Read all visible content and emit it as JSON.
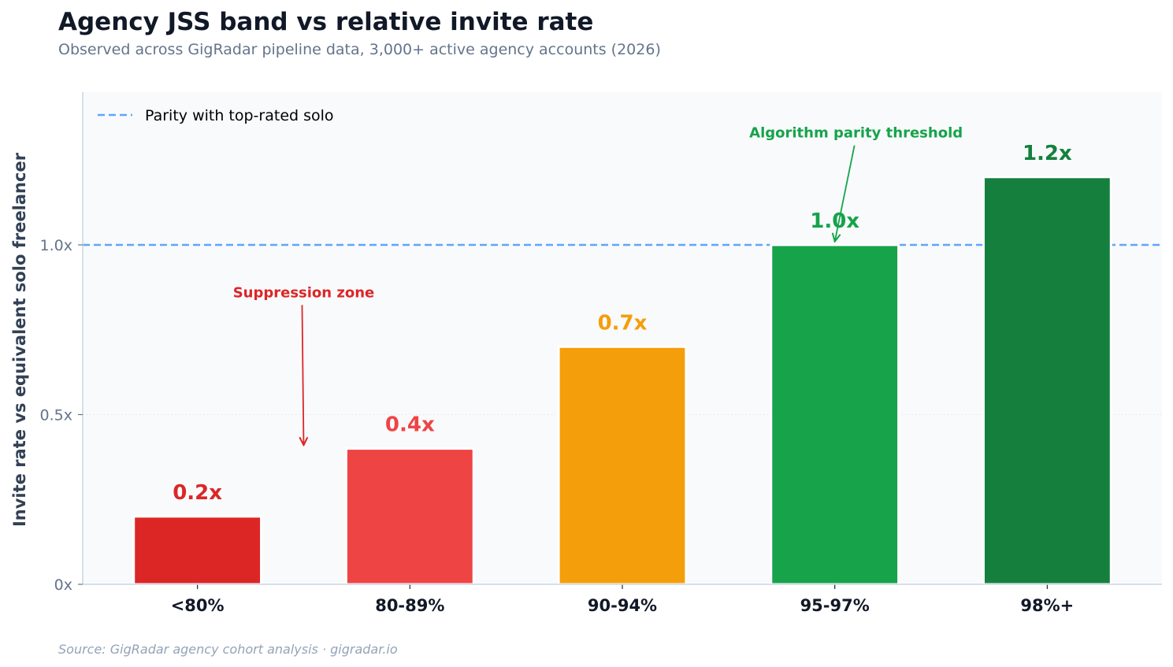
{
  "chart_data": {
    "type": "bar",
    "title": "Agency JSS band vs relative invite rate",
    "subtitle": "Observed across GigRadar pipeline data, 3,000+ active agency accounts (2026)",
    "source": "Source: GigRadar agency cohort analysis · gigradar.io",
    "xlabel": "",
    "ylabel": "Invite rate vs equivalent solo freelancer",
    "categories": [
      "<80%",
      "80-89%",
      "90-94%",
      "95-97%",
      "98%+"
    ],
    "values": [
      0.2,
      0.4,
      0.7,
      1.0,
      1.2
    ],
    "data_labels": [
      "0.2x",
      "0.4x",
      "0.7x",
      "1.0x",
      "1.2x"
    ],
    "bar_colors": [
      "#dc2626",
      "#ef4444",
      "#f59e0b",
      "#16a34a",
      "#15803d"
    ],
    "label_colors": [
      "#dc2626",
      "#ef4444",
      "#f59e0b",
      "#16a34a",
      "#15803d"
    ],
    "ylim": [
      0,
      1.45
    ],
    "yticks": [
      0,
      0.5,
      1.0
    ],
    "ytick_labels": [
      "0x",
      "0.5x",
      "1.0x"
    ],
    "grid": "horizontal dotted",
    "reference_line": {
      "y": 1.0,
      "label": "Parity with top-rated solo",
      "color": "#60a5fa",
      "style": "dashed"
    },
    "legend": {
      "placement": "top-left",
      "entries": [
        "Parity with top-rated solo"
      ]
    },
    "annotations": [
      {
        "text": "Suppression zone",
        "color": "#dc2626",
        "text_at": [
          0.5,
          0.86
        ],
        "points_to": [
          0.5,
          0.41
        ]
      },
      {
        "text": "Algorithm parity threshold",
        "color": "#16a34a",
        "text_at": [
          3.1,
          1.33
        ],
        "points_to": [
          3.0,
          1.01
        ]
      }
    ],
    "plot_background": "#f8fafc"
  }
}
